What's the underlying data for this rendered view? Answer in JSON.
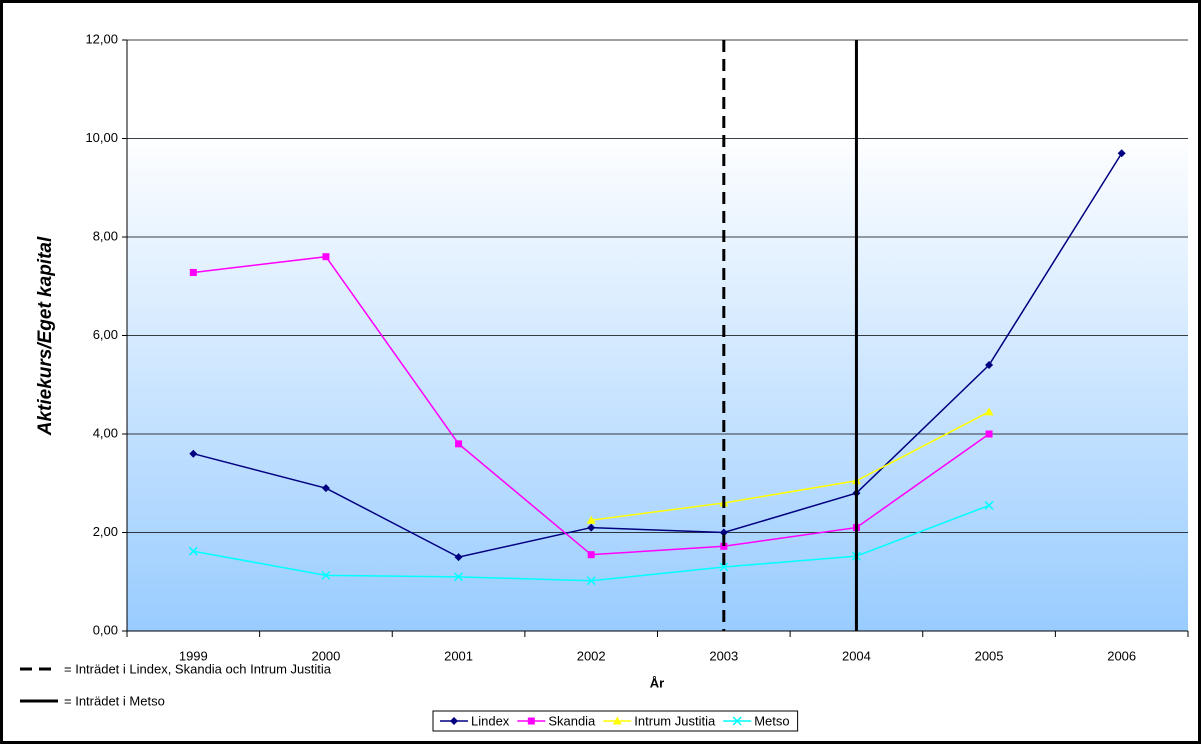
{
  "chart_data": {
    "type": "line",
    "x_label": "År",
    "y_label": "Aktiekurs/Eget kapital",
    "categories": [
      "1999",
      "2000",
      "2001",
      "2002",
      "2003",
      "2004",
      "2005",
      "2006"
    ],
    "series": [
      {
        "name": "Lindex",
        "color": "#000080",
        "marker": "diamond",
        "values": [
          3.6,
          2.9,
          1.5,
          2.1,
          2.0,
          2.8,
          5.4,
          9.7
        ]
      },
      {
        "name": "Skandia",
        "color": "#ff00ff",
        "marker": "square",
        "values": [
          7.28,
          7.6,
          3.8,
          1.55,
          1.72,
          2.1,
          4.0,
          null
        ]
      },
      {
        "name": "Intrum Justitia",
        "color": "#ffff00",
        "marker": "triangle",
        "values": [
          null,
          null,
          null,
          2.25,
          2.6,
          3.05,
          4.45,
          null
        ]
      },
      {
        "name": "Metso",
        "color": "#00ffff",
        "marker": "x",
        "values": [
          1.62,
          1.13,
          1.1,
          1.02,
          1.3,
          1.52,
          2.55,
          null
        ]
      }
    ],
    "ylim": [
      0,
      12
    ],
    "yticks": [
      {
        "value": 0,
        "label": "0,00"
      },
      {
        "value": 2,
        "label": "2,00"
      },
      {
        "value": 4,
        "label": "4,00"
      },
      {
        "value": 6,
        "label": "6,00"
      },
      {
        "value": 8,
        "label": "8,00"
      },
      {
        "value": 10,
        "label": "10,00"
      },
      {
        "value": 12,
        "label": "12,00"
      }
    ],
    "grid": true,
    "legend": "bottom",
    "reference_lines": [
      {
        "category": "2003",
        "style": "dashed",
        "label": "= Inträdet i Lindex, Skandia och Intrum Justitia"
      },
      {
        "category": "2004",
        "style": "solid",
        "label": "= Inträdet i Metso"
      }
    ]
  }
}
